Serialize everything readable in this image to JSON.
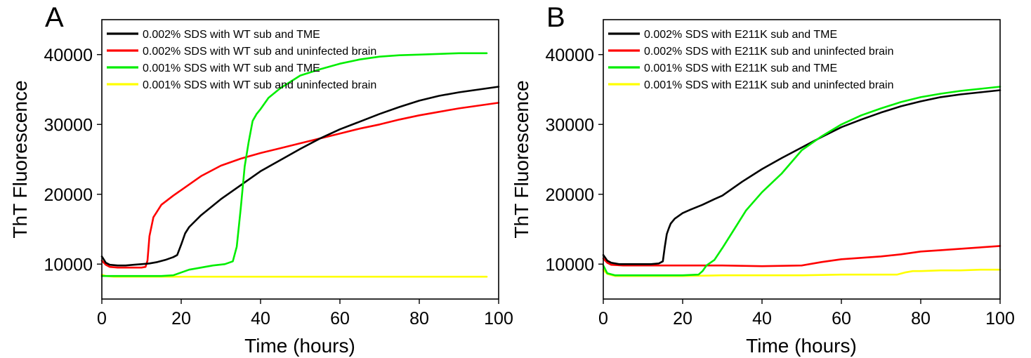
{
  "chart_data": [
    {
      "panel": "A",
      "type": "line",
      "xlabel": "Time (hours)",
      "ylabel": "ThT Fluorescence",
      "xlim": [
        0,
        100
      ],
      "ylim": [
        5000,
        45000
      ],
      "xticks": [
        "0",
        "20",
        "40",
        "60",
        "80",
        "100"
      ],
      "yticks": [
        "10000",
        "20000",
        "30000",
        "40000"
      ],
      "legend_position": "top-left",
      "series": [
        {
          "name": "0.002% SDS with WT sub and TME",
          "color": "#000000",
          "x": [
            0,
            1,
            2,
            4,
            6,
            8,
            10,
            12,
            14,
            16,
            18,
            19,
            20,
            21,
            22,
            25,
            30,
            35,
            40,
            45,
            50,
            55,
            60,
            65,
            70,
            75,
            80,
            85,
            90,
            95,
            100
          ],
          "y": [
            11100,
            10200,
            9900,
            9800,
            9800,
            9900,
            10000,
            10100,
            10300,
            10600,
            11000,
            11300,
            12800,
            14400,
            15300,
            17000,
            19300,
            21300,
            23300,
            24900,
            26500,
            28000,
            29300,
            30400,
            31500,
            32500,
            33400,
            34100,
            34600,
            35000,
            35400
          ]
        },
        {
          "name": "0.002% SDS with WT sub and uninfected brain",
          "color": "#ff0000",
          "x": [
            0,
            1,
            2,
            4,
            6,
            8,
            10,
            11,
            11.5,
            12,
            13,
            15,
            18,
            20,
            25,
            30,
            35,
            40,
            45,
            50,
            55,
            60,
            65,
            70,
            75,
            80,
            85,
            90,
            95,
            100
          ],
          "y": [
            10500,
            9900,
            9600,
            9500,
            9500,
            9500,
            9500,
            9600,
            10500,
            14000,
            16700,
            18500,
            19800,
            20600,
            22600,
            24100,
            25100,
            25900,
            26600,
            27300,
            28000,
            28700,
            29400,
            30000,
            30700,
            31300,
            31800,
            32300,
            32700,
            33100
          ]
        },
        {
          "name": "0.001% SDS with WT sub and TME",
          "color": "#00ee00",
          "x": [
            0,
            5,
            10,
            15,
            18,
            20,
            22,
            25,
            28,
            31,
            33,
            34,
            35,
            36,
            37,
            38,
            39,
            40,
            42,
            45,
            50,
            55,
            60,
            65,
            70,
            75,
            80,
            85,
            90,
            95,
            97
          ],
          "y": [
            8300,
            8300,
            8300,
            8300,
            8400,
            8800,
            9200,
            9500,
            9800,
            10000,
            10400,
            12500,
            18000,
            24000,
            27500,
            30500,
            31500,
            32200,
            33800,
            35200,
            37000,
            37900,
            38700,
            39300,
            39700,
            39900,
            40000,
            40100,
            40200,
            40200,
            40200
          ]
        },
        {
          "name": "0.001% SDS with WT sub and uninfected brain",
          "color": "#ffff00",
          "x": [
            0,
            1,
            3,
            10,
            20,
            30,
            40,
            50,
            60,
            70,
            80,
            90,
            97
          ],
          "y": [
            8500,
            8300,
            8200,
            8200,
            8200,
            8200,
            8200,
            8200,
            8200,
            8200,
            8200,
            8200,
            8200
          ]
        }
      ]
    },
    {
      "panel": "B",
      "type": "line",
      "xlabel": "Time (hours)",
      "ylabel": "ThT Fluorescence",
      "xlim": [
        0,
        100
      ],
      "ylim": [
        5000,
        45000
      ],
      "xticks": [
        "0",
        "20",
        "40",
        "60",
        "80",
        "100"
      ],
      "yticks": [
        "10000",
        "20000",
        "30000",
        "40000"
      ],
      "legend_position": "top-left",
      "series": [
        {
          "name": "0.002% SDS with E211K sub and TME",
          "color": "#000000",
          "x": [
            0,
            1,
            2,
            4,
            8,
            12,
            14,
            15,
            15.5,
            16,
            16.5,
            17,
            18,
            20,
            22,
            25,
            28,
            30,
            35,
            40,
            45,
            50,
            55,
            60,
            65,
            70,
            75,
            80,
            85,
            90,
            95,
            100
          ],
          "y": [
            11300,
            10500,
            10200,
            10000,
            10000,
            10000,
            10100,
            10400,
            12500,
            14300,
            15100,
            15800,
            16500,
            17300,
            17800,
            18500,
            19300,
            19800,
            21800,
            23600,
            25200,
            26700,
            28200,
            29600,
            30700,
            31700,
            32600,
            33300,
            33900,
            34300,
            34600,
            34900
          ]
        },
        {
          "name": "0.002% SDS with E211K sub and uninfected brain",
          "color": "#ff0000",
          "x": [
            0,
            1,
            2,
            5,
            10,
            20,
            30,
            40,
            50,
            55,
            60,
            65,
            70,
            75,
            80,
            85,
            90,
            95,
            100
          ],
          "y": [
            10800,
            10200,
            9900,
            9800,
            9800,
            9800,
            9800,
            9700,
            9800,
            10300,
            10700,
            10900,
            11100,
            11400,
            11800,
            12000,
            12200,
            12400,
            12600
          ]
        },
        {
          "name": "0.001% SDS with E211K sub and TME",
          "color": "#00ee00",
          "x": [
            0,
            1,
            3,
            10,
            20,
            24,
            25,
            26,
            28,
            30,
            33,
            36,
            40,
            45,
            50,
            55,
            60,
            65,
            70,
            75,
            80,
            85,
            90,
            95,
            100
          ],
          "y": [
            9800,
            8700,
            8400,
            8400,
            8400,
            8500,
            9000,
            9800,
            10600,
            12300,
            15000,
            17700,
            20300,
            23000,
            26300,
            28300,
            30000,
            31300,
            32300,
            33200,
            33900,
            34400,
            34800,
            35100,
            35400
          ]
        },
        {
          "name": "0.001% SDS with E211K sub and uninfected brain",
          "color": "#ffff00",
          "x": [
            0,
            1,
            3,
            10,
            20,
            30,
            40,
            50,
            60,
            70,
            74,
            76,
            78,
            80,
            85,
            90,
            95,
            100
          ],
          "y": [
            9200,
            8600,
            8300,
            8300,
            8300,
            8400,
            8400,
            8400,
            8500,
            8500,
            8500,
            8800,
            9000,
            9000,
            9100,
            9100,
            9200,
            9200
          ]
        }
      ]
    }
  ]
}
